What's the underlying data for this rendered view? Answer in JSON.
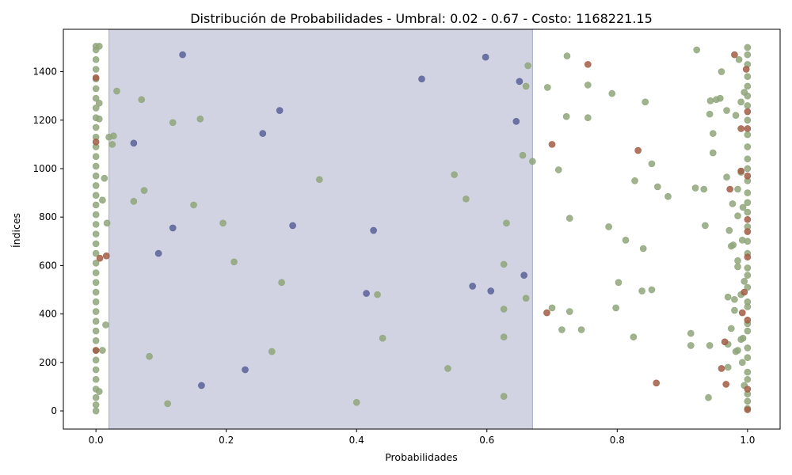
{
  "chart_data": {
    "type": "scatter",
    "title": "Distribución de Probabilidades - Umbral: 0.02 - 0.67 - Costo: 1168221.15",
    "xlabel": "Probabilidades",
    "ylabel": "Índices",
    "xlim": [
      -0.05,
      1.05
    ],
    "ylim": [
      -75,
      1575
    ],
    "x_ticks": [
      0.0,
      0.2,
      0.4,
      0.6,
      0.8,
      1.0
    ],
    "x_tick_labels": [
      "0.0",
      "0.2",
      "0.4",
      "0.6",
      "0.8",
      "1.0"
    ],
    "y_ticks": [
      0,
      200,
      400,
      600,
      800,
      1000,
      1200,
      1400
    ],
    "y_tick_labels": [
      "0",
      "200",
      "400",
      "600",
      "800",
      "1000",
      "1200",
      "1400"
    ],
    "threshold_band": {
      "x_start": 0.02,
      "x_end": 0.67,
      "color": "#a4a8c8"
    },
    "grid": false,
    "legend": "none",
    "series": [
      {
        "color": "#8fa67a",
        "points": [
          [
            0.0,
            0
          ],
          [
            0.0,
            25
          ],
          [
            0.0,
            55
          ],
          [
            0.0,
            90
          ],
          [
            0.0,
            130
          ],
          [
            0.0,
            170
          ],
          [
            0.0,
            210
          ],
          [
            0.0,
            250
          ],
          [
            0.0,
            290
          ],
          [
            0.0,
            330
          ],
          [
            0.0,
            370
          ],
          [
            0.0,
            410
          ],
          [
            0.0,
            450
          ],
          [
            0.0,
            490
          ],
          [
            0.0,
            530
          ],
          [
            0.0,
            570
          ],
          [
            0.0,
            610
          ],
          [
            0.0,
            650
          ],
          [
            0.0,
            690
          ],
          [
            0.0,
            730
          ],
          [
            0.0,
            770
          ],
          [
            0.0,
            810
          ],
          [
            0.0,
            850
          ],
          [
            0.0,
            890
          ],
          [
            0.0,
            930
          ],
          [
            0.0,
            970
          ],
          [
            0.0,
            1010
          ],
          [
            0.0,
            1050
          ],
          [
            0.0,
            1090
          ],
          [
            0.0,
            1130
          ],
          [
            0.0,
            1170
          ],
          [
            0.0,
            1210
          ],
          [
            0.0,
            1250
          ],
          [
            0.0,
            1290
          ],
          [
            0.0,
            1330
          ],
          [
            0.0,
            1370
          ],
          [
            0.0,
            1410
          ],
          [
            0.0,
            1450
          ],
          [
            0.0,
            1490
          ],
          [
            0.0,
            1505
          ],
          [
            0.005,
            1505
          ],
          [
            0.005,
            1270
          ],
          [
            0.005,
            1205
          ],
          [
            0.005,
            80
          ],
          [
            0.01,
            870
          ],
          [
            0.01,
            250
          ],
          [
            0.013,
            960
          ],
          [
            0.015,
            355
          ],
          [
            0.017,
            775
          ],
          [
            0.02,
            1130
          ],
          [
            0.025,
            1100
          ],
          [
            0.027,
            1135
          ],
          [
            0.032,
            1320
          ],
          [
            0.058,
            865
          ],
          [
            0.07,
            1285
          ],
          [
            0.074,
            910
          ],
          [
            0.082,
            225
          ],
          [
            0.11,
            30
          ],
          [
            0.118,
            1190
          ],
          [
            0.15,
            850
          ],
          [
            0.16,
            1205
          ],
          [
            0.195,
            775
          ],
          [
            0.212,
            615
          ],
          [
            0.27,
            245
          ],
          [
            0.285,
            530
          ],
          [
            0.343,
            955
          ],
          [
            0.4,
            35
          ],
          [
            0.432,
            480
          ],
          [
            0.44,
            300
          ],
          [
            0.54,
            175
          ],
          [
            0.55,
            975
          ],
          [
            0.568,
            875
          ],
          [
            0.626,
            60
          ],
          [
            0.626,
            305
          ],
          [
            0.626,
            420
          ],
          [
            0.626,
            605
          ],
          [
            0.63,
            775
          ],
          [
            0.655,
            1055
          ],
          [
            0.66,
            465
          ],
          [
            0.66,
            1340
          ],
          [
            0.663,
            1425
          ],
          [
            0.67,
            1030
          ],
          [
            0.693,
            1335
          ],
          [
            0.7,
            425
          ],
          [
            0.71,
            995
          ],
          [
            0.715,
            335
          ],
          [
            0.722,
            1215
          ],
          [
            0.723,
            1465
          ],
          [
            0.727,
            410
          ],
          [
            0.727,
            795
          ],
          [
            0.745,
            335
          ],
          [
            0.755,
            1210
          ],
          [
            0.755,
            1345
          ],
          [
            0.787,
            760
          ],
          [
            0.792,
            1310
          ],
          [
            0.798,
            425
          ],
          [
            0.802,
            530
          ],
          [
            0.813,
            705
          ],
          [
            0.825,
            305
          ],
          [
            0.827,
            950
          ],
          [
            0.838,
            495
          ],
          [
            0.84,
            670
          ],
          [
            0.843,
            1275
          ],
          [
            0.853,
            500
          ],
          [
            0.853,
            1020
          ],
          [
            0.862,
            925
          ],
          [
            0.878,
            885
          ],
          [
            0.913,
            270
          ],
          [
            0.913,
            320
          ],
          [
            0.92,
            920
          ],
          [
            0.922,
            1490
          ],
          [
            0.933,
            915
          ],
          [
            0.935,
            765
          ],
          [
            0.94,
            55
          ],
          [
            0.942,
            270
          ],
          [
            0.942,
            1225
          ],
          [
            0.943,
            1280
          ],
          [
            0.947,
            1145
          ],
          [
            0.947,
            1065
          ],
          [
            0.952,
            1285
          ],
          [
            0.958,
            1290
          ],
          [
            0.96,
            1400
          ],
          [
            0.968,
            1240
          ],
          [
            0.968,
            965
          ],
          [
            0.97,
            180
          ],
          [
            0.97,
            275
          ],
          [
            0.97,
            470
          ],
          [
            0.972,
            745
          ],
          [
            0.975,
            340
          ],
          [
            0.975,
            680
          ],
          [
            0.977,
            855
          ],
          [
            0.978,
            685
          ],
          [
            0.98,
            415
          ],
          [
            0.98,
            460
          ],
          [
            0.982,
            245
          ],
          [
            0.982,
            1220
          ],
          [
            0.985,
            250
          ],
          [
            0.985,
            595
          ],
          [
            0.985,
            620
          ],
          [
            0.985,
            805
          ],
          [
            0.985,
            915
          ],
          [
            0.987,
            1450
          ],
          [
            0.99,
            295
          ],
          [
            0.99,
            480
          ],
          [
            0.99,
            985
          ],
          [
            0.99,
            1275
          ],
          [
            0.992,
            200
          ],
          [
            0.992,
            705
          ],
          [
            0.993,
            300
          ],
          [
            0.993,
            840
          ],
          [
            0.995,
            1315
          ],
          [
            0.995,
            535
          ],
          [
            0.995,
            105
          ],
          [
            1.0,
            10
          ],
          [
            1.0,
            40
          ],
          [
            1.0,
            70
          ],
          [
            1.0,
            130
          ],
          [
            1.0,
            160
          ],
          [
            1.0,
            220
          ],
          [
            1.0,
            260
          ],
          [
            1.0,
            330
          ],
          [
            1.0,
            360
          ],
          [
            1.0,
            430
          ],
          [
            1.0,
            450
          ],
          [
            1.0,
            510
          ],
          [
            1.0,
            560
          ],
          [
            1.0,
            590
          ],
          [
            1.0,
            650
          ],
          [
            1.0,
            700
          ],
          [
            1.0,
            760
          ],
          [
            1.0,
            820
          ],
          [
            1.0,
            860
          ],
          [
            1.0,
            900
          ],
          [
            1.0,
            950
          ],
          [
            1.0,
            1000
          ],
          [
            1.0,
            1040
          ],
          [
            1.0,
            1090
          ],
          [
            1.0,
            1140
          ],
          [
            1.0,
            1200
          ],
          [
            1.0,
            1260
          ],
          [
            1.0,
            1300
          ],
          [
            1.0,
            1340
          ],
          [
            1.0,
            1380
          ],
          [
            1.0,
            1430
          ],
          [
            1.0,
            1470
          ],
          [
            1.0,
            1500
          ]
        ]
      },
      {
        "color": "#5a6299",
        "points": [
          [
            0.058,
            1105
          ],
          [
            0.096,
            650
          ],
          [
            0.118,
            755
          ],
          [
            0.133,
            1470
          ],
          [
            0.162,
            105
          ],
          [
            0.229,
            170
          ],
          [
            0.256,
            1145
          ],
          [
            0.282,
            1240
          ],
          [
            0.302,
            765
          ],
          [
            0.415,
            485
          ],
          [
            0.426,
            745
          ],
          [
            0.5,
            1370
          ],
          [
            0.578,
            515
          ],
          [
            0.598,
            1460
          ],
          [
            0.606,
            495
          ],
          [
            0.645,
            1195
          ],
          [
            0.65,
            1360
          ],
          [
            0.657,
            560
          ]
        ]
      },
      {
        "color": "#a25d45",
        "points": [
          [
            0.0,
            1375
          ],
          [
            0.0,
            1110
          ],
          [
            0.0,
            250
          ],
          [
            0.006,
            630
          ],
          [
            0.016,
            640
          ],
          [
            0.692,
            405
          ],
          [
            0.7,
            1100
          ],
          [
            0.755,
            1430
          ],
          [
            0.832,
            1075
          ],
          [
            0.86,
            115
          ],
          [
            0.96,
            175
          ],
          [
            0.965,
            285
          ],
          [
            0.967,
            110
          ],
          [
            0.973,
            915
          ],
          [
            0.98,
            1470
          ],
          [
            0.99,
            990
          ],
          [
            0.99,
            1165
          ],
          [
            0.992,
            405
          ],
          [
            0.995,
            490
          ],
          [
            0.998,
            1410
          ],
          [
            1.0,
            5
          ],
          [
            1.0,
            90
          ],
          [
            1.0,
            375
          ],
          [
            1.0,
            635
          ],
          [
            1.0,
            740
          ],
          [
            1.0,
            790
          ],
          [
            1.0,
            970
          ],
          [
            1.0,
            1165
          ],
          [
            1.0,
            1235
          ]
        ]
      }
    ]
  }
}
